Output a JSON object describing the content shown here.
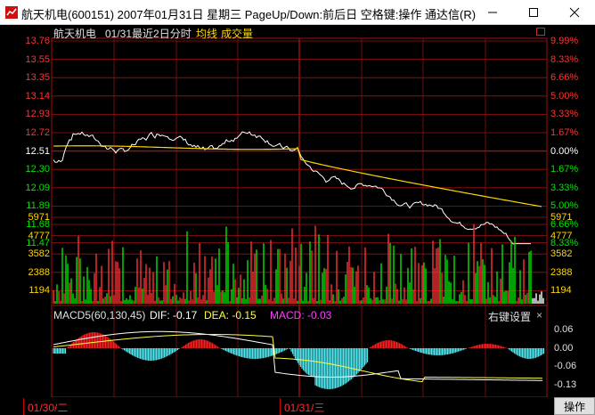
{
  "window": {
    "title": "航天机电(600151) 2007年01月31日 星期三 PageUp/Down:前后日 空格键:操作 通达信(R)"
  },
  "header": {
    "stock_name": "航天机电",
    "period_label": "01/31最近2日分时",
    "avg_label": "均线",
    "vol_label": "成交量"
  },
  "price_axis": {
    "left": [
      "13.76",
      "13.55",
      "13.35",
      "13.14",
      "12.93",
      "12.72",
      "12.51",
      "12.30",
      "12.09",
      "11.89",
      "11.68",
      "11.47"
    ],
    "right": [
      "9.99%",
      "8.33%",
      "6.66%",
      "5.00%",
      "3.33%",
      "1.67%",
      "0.00%",
      "1.67%",
      "3.33%",
      "5.00%",
      "6.66%",
      "8.33%"
    ],
    "pre_close": "12.51"
  },
  "volume_axis": {
    "labels": [
      "5971",
      "4777",
      "3582",
      "2388",
      "1194"
    ]
  },
  "macd": {
    "title": "MACD5(60,130,45)",
    "dif": "DIF: -0.17",
    "dea": "DEA: -0.15",
    "macd": "MACD: -0.03",
    "settings": "右键设置",
    "axis": [
      "0.06",
      "0.00",
      "-0.06",
      "-0.13"
    ]
  },
  "footer": {
    "day1": "01/30/二",
    "day2": "01/31/三",
    "action": "操作"
  },
  "colors": {
    "up": "#ff3232",
    "down": "#00e600",
    "price_line": "#ffffff",
    "avg_line": "#ffd700",
    "grid": "#a01010",
    "macd_pos": "#ff2020",
    "macd_neg": "#4fe8f0",
    "dif": "#ffffff",
    "dea": "#ffff40",
    "macd_label": "#ff40ff"
  },
  "icons": {
    "app": "tdx-app-icon",
    "minimize": "minimize-icon",
    "maximize": "maximize-icon",
    "close": "close-icon"
  }
}
